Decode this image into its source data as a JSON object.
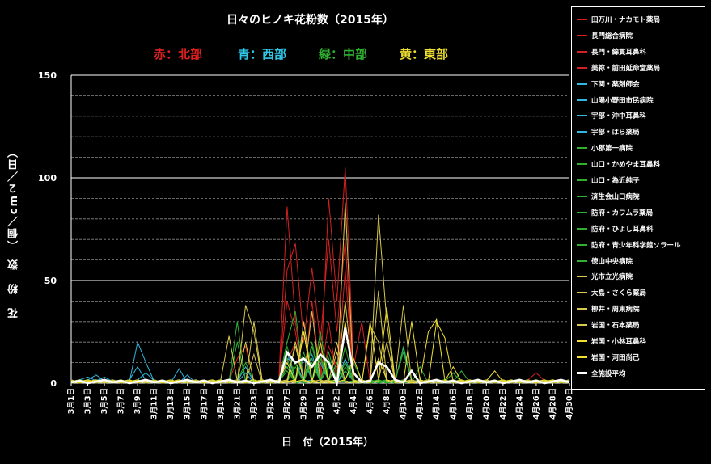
{
  "chart_data": {
    "type": "line",
    "title": "日々のヒノキ花粉数（2015年）",
    "region_labels": [
      {
        "text": "赤：北部",
        "color": "#e02020"
      },
      {
        "text": "青：西部",
        "color": "#30c8e8"
      },
      {
        "text": "緑：中部",
        "color": "#30b030"
      },
      {
        "text": "黄：東部",
        "color": "#f0e030"
      }
    ],
    "xlabel": "日　付（2015年）",
    "ylabel": "花　粉　数　（個／cm２／日）",
    "ylim": [
      0,
      150
    ],
    "yticks": [
      0,
      50,
      100,
      150
    ],
    "grid": true,
    "legend_position": "right",
    "x_tick_labels": [
      "3月1日",
      "3月3日",
      "3月5日",
      "3月7日",
      "3月9日",
      "3月11日",
      "3月13日",
      "3月15日",
      "3月17日",
      "3月19日",
      "3月21日",
      "3月23日",
      "3月25日",
      "3月27日",
      "3月29日",
      "3月31日",
      "4月2日",
      "4月4日",
      "4月6日",
      "4月8日",
      "4月10日",
      "4月12日",
      "4月14日",
      "4月16日",
      "4月18日",
      "4月20日",
      "4月22日",
      "4月24日",
      "4月26日",
      "4月28日",
      "4月30日"
    ],
    "series": [
      {
        "name": "田万川・ナカモト薬局",
        "color": "#d42020",
        "peaks": [
          [
            26,
            10
          ],
          [
            27,
            20
          ],
          [
            31,
            18
          ],
          [
            32,
            8
          ]
        ]
      },
      {
        "name": "長門総合病院",
        "color": "#d42020",
        "peaks": [
          [
            26,
            86
          ],
          [
            27,
            30
          ],
          [
            29,
            12
          ],
          [
            31,
            90
          ],
          [
            32,
            40
          ],
          [
            33,
            105
          ],
          [
            34,
            8
          ],
          [
            35,
            30
          ]
        ]
      },
      {
        "name": "長門・綿貫耳鼻科",
        "color": "#d42020",
        "peaks": [
          [
            26,
            55
          ],
          [
            27,
            68
          ],
          [
            28,
            20
          ],
          [
            29,
            56
          ],
          [
            30,
            20
          ],
          [
            31,
            70
          ],
          [
            32,
            25
          ],
          [
            33,
            70
          ]
        ]
      },
      {
        "name": "美祢・前田延命堂薬局",
        "color": "#d42020",
        "peaks": [
          [
            20,
            12
          ],
          [
            21,
            18
          ],
          [
            26,
            40
          ],
          [
            27,
            25
          ],
          [
            29,
            40
          ],
          [
            31,
            30
          ],
          [
            33,
            55
          ],
          [
            56,
            5
          ]
        ]
      },
      {
        "name": "下関・薬剤師会",
        "color": "#30b8e0",
        "peaks": [
          [
            2,
            3
          ],
          [
            4,
            3
          ],
          [
            8,
            20
          ],
          [
            9,
            10
          ],
          [
            13,
            7
          ],
          [
            21,
            8
          ],
          [
            26,
            12
          ],
          [
            27,
            10
          ]
        ]
      },
      {
        "name": "山陽小野田市民病院",
        "color": "#30b8e0",
        "peaks": [
          [
            3,
            4
          ],
          [
            8,
            8
          ],
          [
            14,
            4
          ],
          [
            26,
            15
          ],
          [
            28,
            12
          ],
          [
            32,
            10
          ],
          [
            40,
            17
          ]
        ]
      },
      {
        "name": "宇部・沖中耳鼻科",
        "color": "#30b8e0",
        "peaks": [
          [
            9,
            5
          ],
          [
            26,
            10
          ],
          [
            29,
            14
          ],
          [
            31,
            8
          ],
          [
            33,
            12
          ]
        ]
      },
      {
        "name": "宇部・はら薬局",
        "color": "#30b8e0",
        "peaks": [
          [
            21,
            5
          ],
          [
            26,
            8
          ],
          [
            30,
            10
          ],
          [
            33,
            6
          ]
        ]
      },
      {
        "name": "小郡第一病院",
        "color": "#30b030",
        "peaks": [
          [
            20,
            30
          ],
          [
            26,
            20
          ],
          [
            27,
            35
          ],
          [
            29,
            20
          ],
          [
            31,
            15
          ],
          [
            33,
            10
          ]
        ]
      },
      {
        "name": "山口・かめやま耳鼻科",
        "color": "#30b030",
        "peaks": [
          [
            20,
            20
          ],
          [
            26,
            12
          ],
          [
            28,
            30
          ],
          [
            30,
            25
          ],
          [
            33,
            18
          ],
          [
            40,
            18
          ]
        ]
      },
      {
        "name": "山口・為近純子",
        "color": "#30b030",
        "peaks": [
          [
            26,
            18
          ],
          [
            28,
            15
          ],
          [
            30,
            20
          ],
          [
            32,
            10
          ]
        ]
      },
      {
        "name": "済生会山口病院",
        "color": "#30b030",
        "peaks": [
          [
            21,
            10
          ],
          [
            27,
            20
          ],
          [
            29,
            18
          ],
          [
            31,
            12
          ],
          [
            34,
            10
          ]
        ]
      },
      {
        "name": "防府・カワムラ薬局",
        "color": "#30b030",
        "peaks": [
          [
            26,
            8
          ],
          [
            29,
            12
          ],
          [
            33,
            8
          ],
          [
            40,
            15
          ]
        ]
      },
      {
        "name": "防府・ひよし耳鼻科",
        "color": "#30b030",
        "peaks": [
          [
            27,
            10
          ],
          [
            30,
            14
          ],
          [
            33,
            6
          ],
          [
            42,
            8
          ]
        ]
      },
      {
        "name": "防府・青少年科学館ソラール",
        "color": "#30b030",
        "peaks": [
          [
            26,
            6
          ],
          [
            29,
            10
          ],
          [
            31,
            8
          ],
          [
            46,
            5
          ]
        ]
      },
      {
        "name": "徳山中央病院",
        "color": "#30b030",
        "peaks": [
          [
            27,
            8
          ],
          [
            30,
            12
          ],
          [
            33,
            10
          ],
          [
            47,
            6
          ]
        ]
      },
      {
        "name": "光市立光病院",
        "color": "#d8c850",
        "peaks": [
          [
            19,
            23
          ],
          [
            22,
            30
          ],
          [
            27,
            20
          ],
          [
            29,
            35
          ],
          [
            33,
            40
          ],
          [
            37,
            45
          ]
        ]
      },
      {
        "name": "大島・さくら薬局",
        "color": "#d8c850",
        "peaks": [
          [
            21,
            38
          ],
          [
            22,
            25
          ],
          [
            28,
            30
          ],
          [
            33,
            88
          ],
          [
            36,
            28
          ],
          [
            37,
            20
          ]
        ]
      },
      {
        "name": "柳井・周東病院",
        "color": "#d8c850",
        "peaks": [
          [
            22,
            14
          ],
          [
            28,
            25
          ],
          [
            32,
            20
          ],
          [
            38,
            20
          ],
          [
            40,
            38
          ]
        ]
      },
      {
        "name": "岩国・石本薬局",
        "color": "#d8c850",
        "peaks": [
          [
            21,
            20
          ],
          [
            27,
            18
          ],
          [
            32,
            15
          ],
          [
            37,
            82
          ],
          [
            38,
            30
          ]
        ]
      },
      {
        "name": "岩国・小林耳鼻科",
        "color": "#f0e030",
        "peaks": [
          [
            28,
            25
          ],
          [
            33,
            30
          ],
          [
            36,
            30
          ],
          [
            38,
            37
          ],
          [
            41,
            30
          ],
          [
            44,
            30
          ],
          [
            45,
            22
          ]
        ]
      },
      {
        "name": "岩国・河田尚己",
        "color": "#f0e030",
        "peaks": [
          [
            26,
            10
          ],
          [
            30,
            20
          ],
          [
            34,
            12
          ],
          [
            37,
            12
          ],
          [
            43,
            25
          ],
          [
            44,
            31
          ],
          [
            46,
            8
          ],
          [
            51,
            6
          ]
        ]
      },
      {
        "name": "全施設平均",
        "color": "#ffffff",
        "peaks": [
          [
            26,
            15
          ],
          [
            27,
            10
          ],
          [
            28,
            12
          ],
          [
            29,
            8
          ],
          [
            30,
            14
          ],
          [
            31,
            10
          ],
          [
            33,
            27
          ],
          [
            34,
            5
          ],
          [
            37,
            10
          ],
          [
            38,
            8
          ],
          [
            41,
            6
          ]
        ]
      }
    ]
  }
}
